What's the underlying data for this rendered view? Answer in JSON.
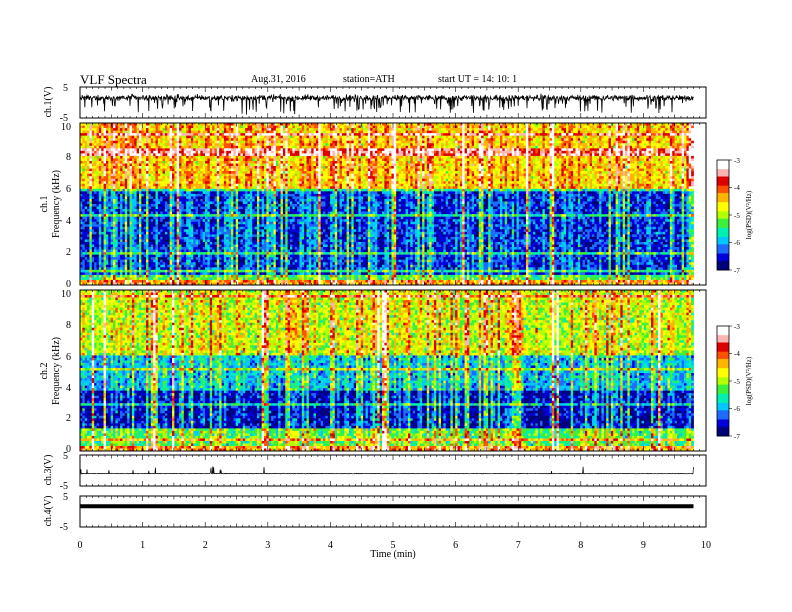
{
  "header": {
    "title": "VLF  Spectra",
    "date": "Aug.31, 2016",
    "station": "station=ATH",
    "start_ut": "start  UT =   14: 10: 1"
  },
  "chart_data": [
    {
      "type": "line",
      "name": "ch.1 waveform",
      "ylabel": "ch.1(V)",
      "ytick_labels": [
        "5",
        "-5"
      ],
      "ylim": [
        -5,
        5
      ],
      "xlim": [
        0,
        10
      ],
      "style": "dense noisy trace centred near +1.5 V with frequent negative spikes to about -3 V"
    },
    {
      "type": "heatmap",
      "name": "ch.1 spectrogram",
      "ylabel_line1": "ch.1",
      "ylabel_line2": "Frequency  (kHz)",
      "ytick_labels": [
        "10",
        "8",
        "6",
        "4",
        "2",
        "0"
      ],
      "ylim": [
        0,
        10
      ],
      "xlim": [
        0,
        9.8
      ],
      "colorbar": {
        "label": "log(PSD)(V²/Hz)",
        "tick_labels": [
          "-3",
          "-4",
          "-5",
          "-6",
          "-7"
        ],
        "range": [
          -7,
          -3
        ]
      },
      "bands": [
        {
          "from": 6.0,
          "to": 10.0,
          "level": -4.6
        },
        {
          "from": 5.8,
          "to": 6.0,
          "level": -5.6
        },
        {
          "from": 0.6,
          "to": 5.8,
          "level": -6.5
        },
        {
          "from": 0.0,
          "to": 0.6,
          "level": -5.4
        }
      ]
    },
    {
      "type": "heatmap",
      "name": "ch.2 spectrogram",
      "ylabel_line1": "ch.2",
      "ylabel_line2": "Frequency  (kHz)",
      "ytick_labels": [
        "10",
        "8",
        "6",
        "4",
        "2",
        "0"
      ],
      "ylim": [
        0,
        10
      ],
      "xlim": [
        0,
        9.8
      ],
      "colorbar": {
        "label": "log(PSD)(V²/Hz)",
        "tick_labels": [
          "-3",
          "-4",
          "-5",
          "-6",
          "-7"
        ],
        "range": [
          -7,
          -3
        ]
      },
      "bands": [
        {
          "from": 6.0,
          "to": 10.0,
          "level": -5.0
        },
        {
          "from": 3.8,
          "to": 6.0,
          "level": -6.0
        },
        {
          "from": 1.4,
          "to": 3.8,
          "level": -6.7
        },
        {
          "from": 0.0,
          "to": 1.4,
          "level": -5.4
        }
      ]
    },
    {
      "type": "line",
      "name": "ch.3 waveform",
      "ylabel": "ch.3(V)",
      "ytick_labels": [
        "5",
        "-5"
      ],
      "ylim": [
        -5,
        5
      ],
      "xlim": [
        0,
        10
      ],
      "style": "flat trace near -1 V with small spikes"
    },
    {
      "type": "line",
      "name": "ch.4 waveform",
      "ylabel": "ch.4(V)",
      "ytick_labels": [
        "5",
        "-5"
      ],
      "ylim": [
        -5,
        5
      ],
      "xlim": [
        0,
        10
      ],
      "style": "thick constant trace near +1.7 V"
    }
  ],
  "x_axis": {
    "label": "Time  (min)",
    "tick_labels": [
      "0",
      "1",
      "2",
      "3",
      "4",
      "5",
      "6",
      "7",
      "8",
      "9",
      "10"
    ],
    "range": [
      0,
      10
    ]
  },
  "colorscale": [
    "#00007a",
    "#0000dc",
    "#1e6cff",
    "#00c8ff",
    "#00f0b4",
    "#3cf03c",
    "#b4ff00",
    "#ffff00",
    "#ffb400",
    "#ff5000",
    "#dc0000",
    "#ffb4b4",
    "#ffffff"
  ]
}
